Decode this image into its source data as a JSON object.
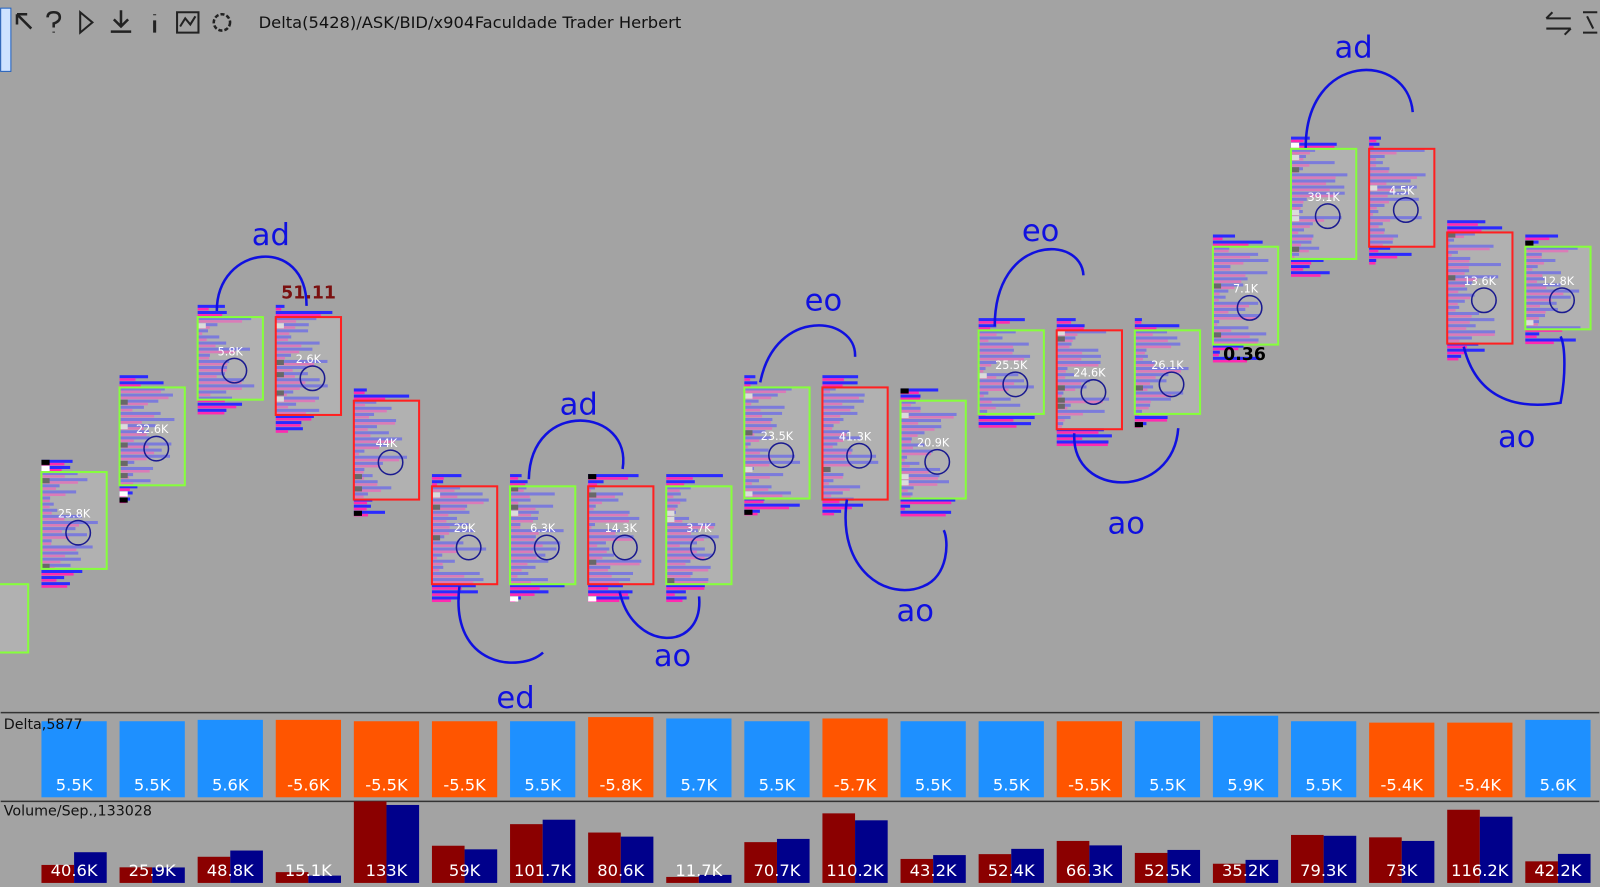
{
  "toolbar": {
    "instrument": "Delta(5428)/ASK/BID/x904",
    "label": "Faculdade Trader Herbert"
  },
  "chart_data": [
    {
      "type": "footprint",
      "candles": [
        {
          "color": "#86ff3c",
          "label": "25.8K"
        },
        {
          "color": "#86ff3c",
          "label": "22.6K"
        },
        {
          "color": "#86ff3c",
          "label": "5.8K"
        },
        {
          "color": "#ff2020",
          "label": "2.6K"
        },
        {
          "color": "#ff2020",
          "label": "44K"
        },
        {
          "color": "#ff2020",
          "label": "29K"
        },
        {
          "color": "#86ff3c",
          "label": "6.3K"
        },
        {
          "color": "#ff2020",
          "label": "14.3K"
        },
        {
          "color": "#86ff3c",
          "label": "3.7K"
        },
        {
          "color": "#86ff3c",
          "label": "23.5K"
        },
        {
          "color": "#ff2020",
          "label": "41.3K"
        },
        {
          "color": "#86ff3c",
          "label": "20.9K"
        },
        {
          "color": "#86ff3c",
          "label": "25.5K"
        },
        {
          "color": "#ff2020",
          "label": "24.6K"
        },
        {
          "color": "#86ff3c",
          "label": "26.1K"
        },
        {
          "color": "#86ff3c",
          "label": "7.1K"
        },
        {
          "color": "#86ff3c",
          "label": "39.1K"
        },
        {
          "color": "#ff2020",
          "label": "4.5K"
        },
        {
          "color": "#ff2020",
          "label": "13.6K"
        },
        {
          "color": "#86ff3c",
          "label": "12.8K"
        }
      ],
      "annotations": [
        {
          "text": "ad",
          "color": "#1010e0"
        },
        {
          "text": "51.11",
          "color": "#7a1010"
        },
        {
          "text": "ad",
          "color": "#1010e0"
        },
        {
          "text": "ed",
          "color": "#1010e0"
        },
        {
          "text": "ao",
          "color": "#1010e0"
        },
        {
          "text": "eo",
          "color": "#1010e0"
        },
        {
          "text": "ao",
          "color": "#1010e0"
        },
        {
          "text": "eo",
          "color": "#1010e0"
        },
        {
          "text": "ao",
          "color": "#1010e0"
        },
        {
          "text": "ad",
          "color": "#1010e0"
        },
        {
          "text": "0.36",
          "color": "#000000"
        },
        {
          "text": "ao",
          "color": "#1010e0"
        }
      ]
    },
    {
      "type": "bar",
      "title": "Delta,5877",
      "values": [
        5500,
        5500,
        5600,
        -5600,
        -5500,
        -5500,
        5500,
        -5800,
        5700,
        5500,
        -5700,
        5500,
        5500,
        -5500,
        5500,
        5900,
        5500,
        -5400,
        -5400,
        5600
      ],
      "value_labels": [
        "5.5K",
        "5.5K",
        "5.6K",
        "-5.6K",
        "-5.5K",
        "-5.5K",
        "5.5K",
        "-5.8K",
        "5.7K",
        "5.5K",
        "-5.7K",
        "5.5K",
        "5.5K",
        "-5.5K",
        "5.5K",
        "5.9K",
        "5.5K",
        "-5.4K",
        "-5.4K",
        "5.6K"
      ],
      "positive_color": "#1e90ff",
      "negative_color": "#ff5500"
    },
    {
      "type": "grouped-bar",
      "title": "Volume/Sep.,133028",
      "values": [
        40600,
        25900,
        48800,
        15100,
        133000,
        59000,
        101700,
        80600,
        11700,
        70700,
        110200,
        43200,
        52400,
        66300,
        52500,
        35200,
        79300,
        73000,
        116200,
        42200
      ],
      "value_labels": [
        "40.6K",
        "25.9K",
        "48.8K",
        "15.1K",
        "133K",
        "59K",
        "101.7K",
        "80.6K",
        "11.7K",
        "70.7K",
        "110.2K",
        "43.2K",
        "52.4K",
        "66.3K",
        "52.5K",
        "35.2K",
        "79.3K",
        "73K",
        "116.2K",
        "42.2K"
      ],
      "series": [
        {
          "color": "#8b0000",
          "values": [
            15000,
            13000,
            21800,
            9000,
            68000,
            31000,
            49000,
            42000,
            5000,
            34000,
            58000,
            20000,
            24000,
            35000,
            25000,
            16000,
            40000,
            38000,
            61000,
            18000
          ]
        },
        {
          "color": "#00008b",
          "values": [
            25600,
            12900,
            27000,
            6100,
            65000,
            28000,
            52700,
            38600,
            6700,
            36700,
            52200,
            23200,
            28400,
            31300,
            27500,
            19200,
            39300,
            35000,
            55200,
            24200
          ]
        }
      ]
    }
  ]
}
